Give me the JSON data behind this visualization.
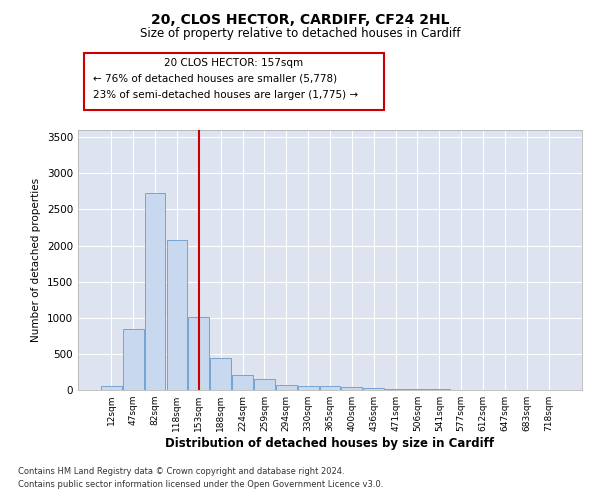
{
  "title1": "20, CLOS HECTOR, CARDIFF, CF24 2HL",
  "title2": "Size of property relative to detached houses in Cardiff",
  "xlabel": "Distribution of detached houses by size in Cardiff",
  "ylabel": "Number of detached properties",
  "footnote1": "Contains HM Land Registry data © Crown copyright and database right 2024.",
  "footnote2": "Contains public sector information licensed under the Open Government Licence v3.0.",
  "categories": [
    "12sqm",
    "47sqm",
    "82sqm",
    "118sqm",
    "153sqm",
    "188sqm",
    "224sqm",
    "259sqm",
    "294sqm",
    "330sqm",
    "365sqm",
    "400sqm",
    "436sqm",
    "471sqm",
    "506sqm",
    "541sqm",
    "577sqm",
    "612sqm",
    "647sqm",
    "683sqm",
    "718sqm"
  ],
  "values": [
    55,
    850,
    2725,
    2075,
    1010,
    450,
    210,
    150,
    75,
    55,
    50,
    35,
    28,
    18,
    10,
    8,
    5,
    3,
    2,
    1,
    1
  ],
  "bar_color": "#c8d8ee",
  "bar_edge_color": "#6699cc",
  "background_color": "#dde4f0",
  "grid_color": "#ffffff",
  "vline_x": 4,
  "vline_color": "#cc0000",
  "annotation_line1": "20 CLOS HECTOR: 157sqm",
  "annotation_line2": "← 76% of detached houses are smaller (5,778)",
  "annotation_line3": "23% of semi-detached houses are larger (1,775) →",
  "annotation_box_color": "#cc0000",
  "ylim": [
    0,
    3600
  ],
  "yticks": [
    0,
    500,
    1000,
    1500,
    2000,
    2500,
    3000,
    3500
  ]
}
